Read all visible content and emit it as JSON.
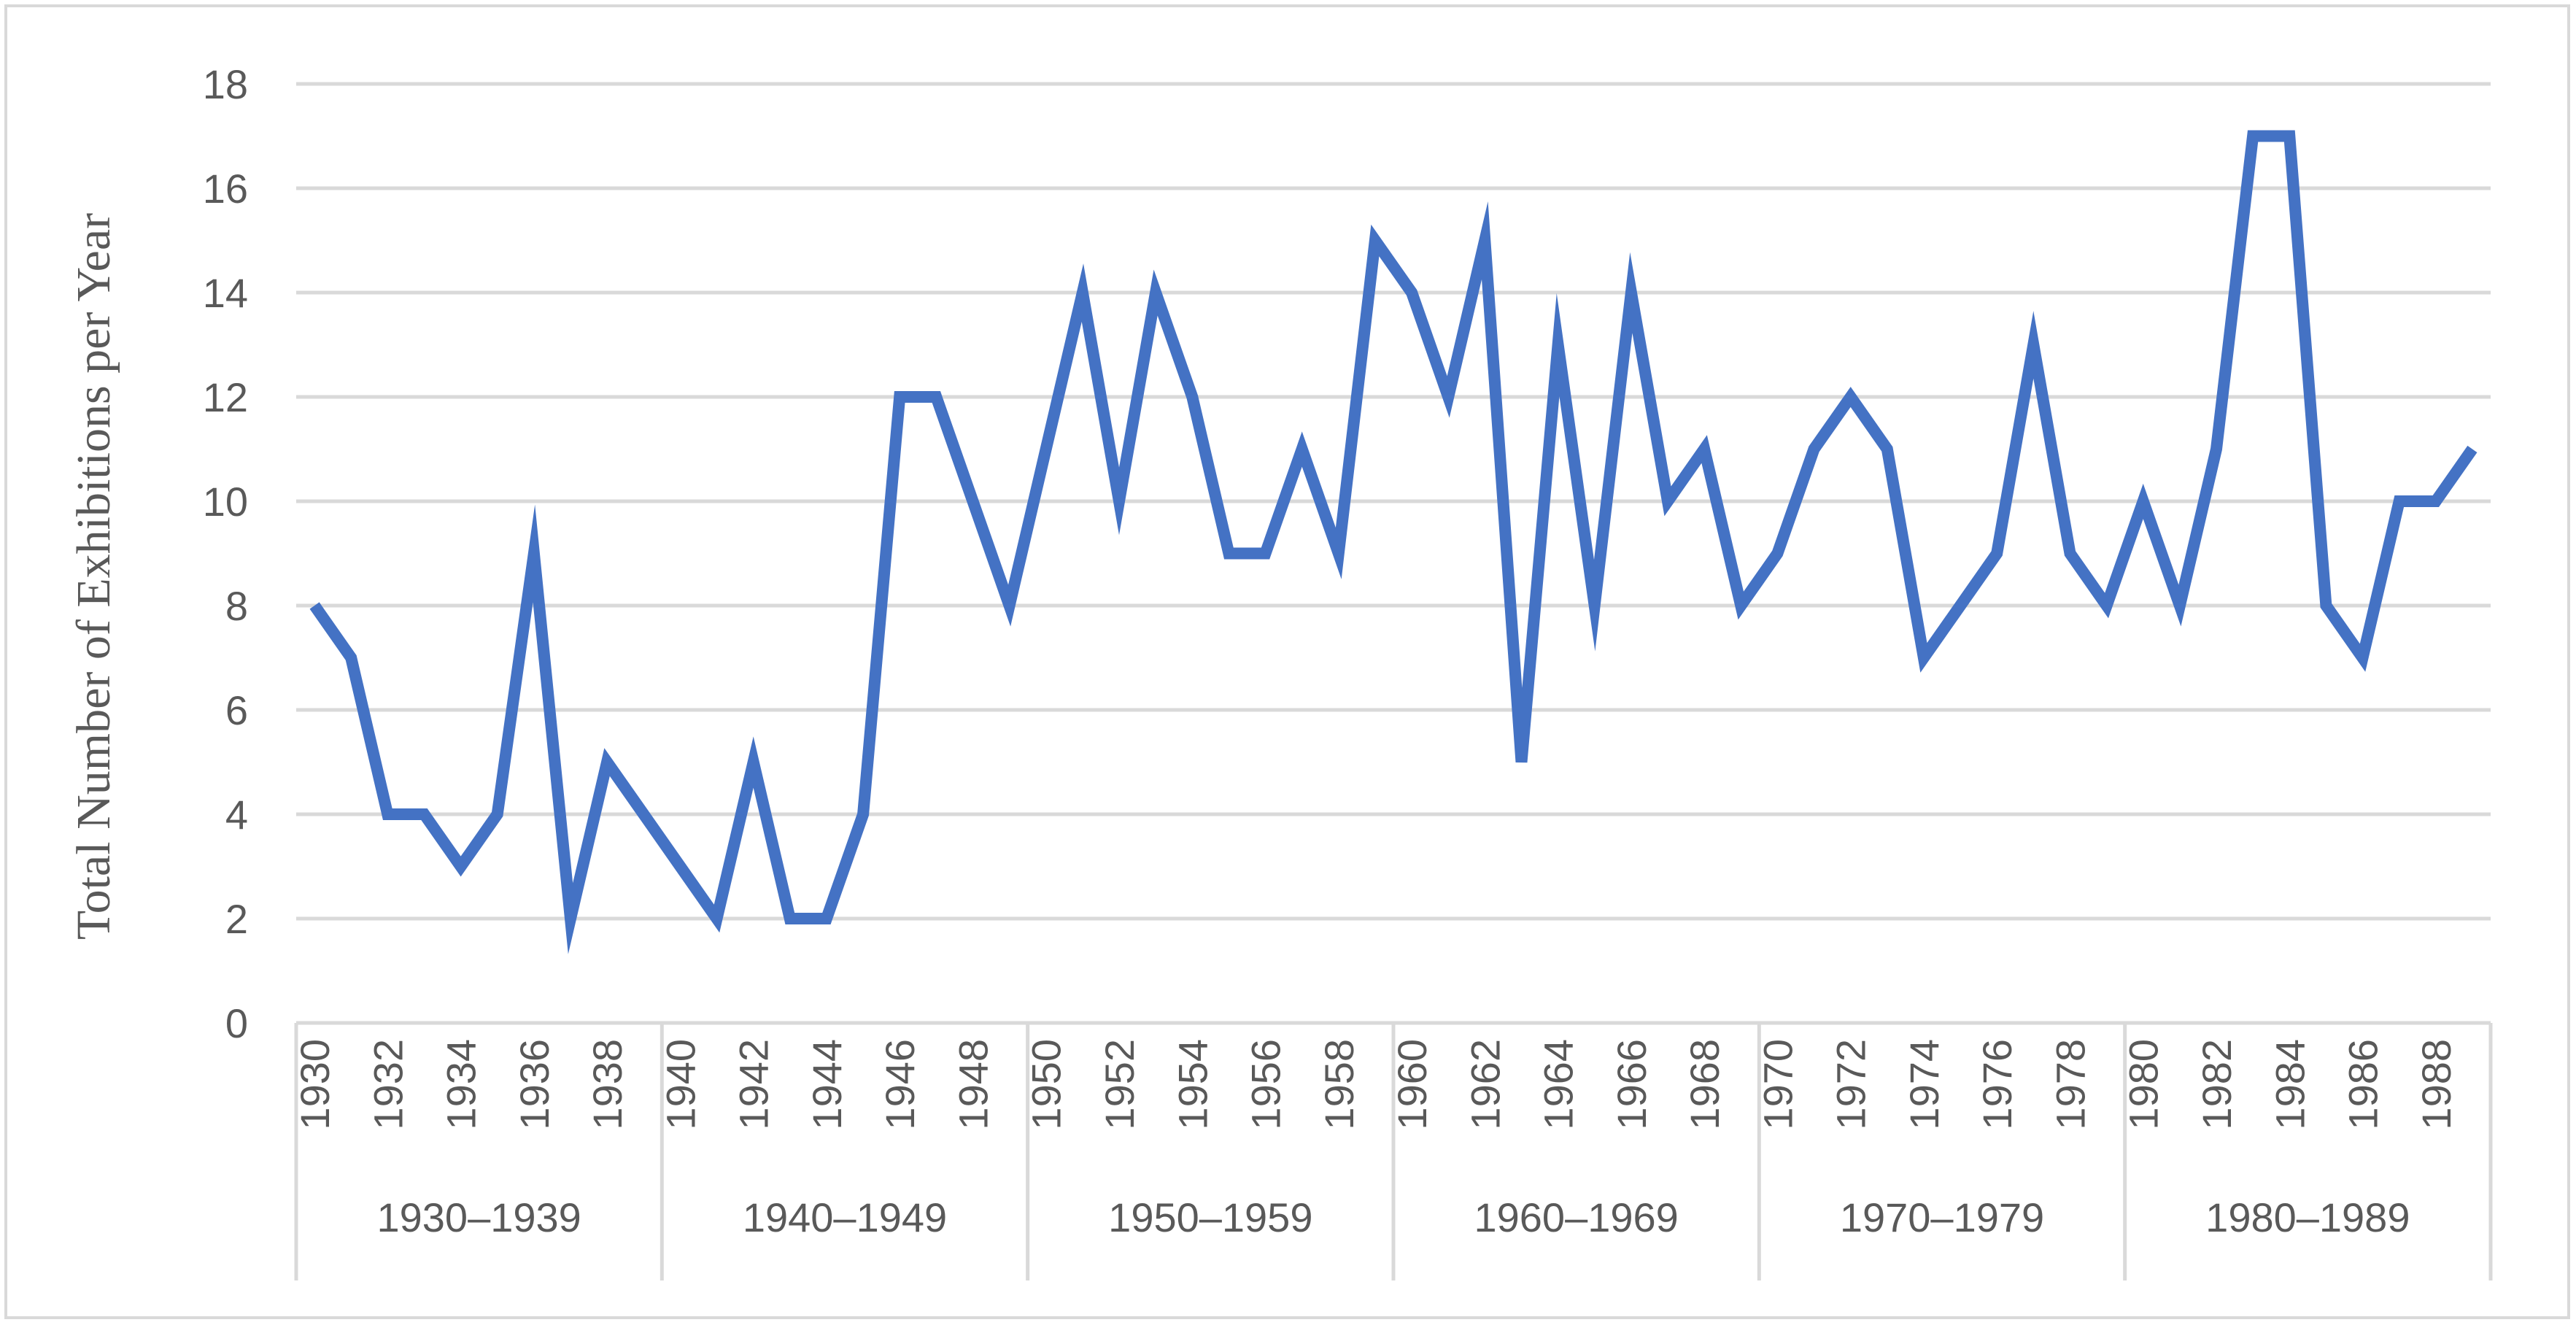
{
  "chart_data": {
    "type": "line",
    "title": "",
    "ylabel": "Total Number of Exhibitions per Year",
    "xlabel": "",
    "ylim": [
      0,
      18
    ],
    "yticks": [
      0,
      2,
      4,
      6,
      8,
      10,
      12,
      14,
      16,
      18
    ],
    "grid": true,
    "legend": "none",
    "x": [
      1930,
      1931,
      1932,
      1933,
      1934,
      1935,
      1936,
      1937,
      1938,
      1939,
      1940,
      1941,
      1942,
      1943,
      1944,
      1945,
      1946,
      1947,
      1948,
      1949,
      1950,
      1951,
      1952,
      1953,
      1954,
      1955,
      1956,
      1957,
      1958,
      1959,
      1960,
      1961,
      1962,
      1963,
      1964,
      1965,
      1966,
      1967,
      1968,
      1969,
      1970,
      1971,
      1972,
      1973,
      1974,
      1975,
      1976,
      1977,
      1978,
      1979,
      1980,
      1981,
      1982,
      1983,
      1984,
      1985,
      1986,
      1987,
      1988,
      1989
    ],
    "x_tick_labels": [
      "1930",
      "1932",
      "1934",
      "1936",
      "1938",
      "1940",
      "1942",
      "1944",
      "1946",
      "1948",
      "1950",
      "1952",
      "1954",
      "1956",
      "1958",
      "1960",
      "1962",
      "1964",
      "1966",
      "1968",
      "1970",
      "1972",
      "1974",
      "1976",
      "1978",
      "1980",
      "1982",
      "1984",
      "1986",
      "1988"
    ],
    "groups": [
      "1930–1939",
      "1940–1949",
      "1950–1959",
      "1960–1969",
      "1970–1979",
      "1980–1989"
    ],
    "series": [
      {
        "values": [
          8,
          7,
          4,
          4,
          3,
          4,
          9,
          2,
          5,
          4,
          3,
          2,
          5,
          2,
          2,
          4,
          12,
          12,
          10,
          8,
          11,
          14,
          10,
          14,
          12,
          9,
          9,
          11,
          9,
          15,
          14,
          12,
          15,
          5,
          13,
          8,
          14,
          10,
          11,
          8,
          9,
          11,
          12,
          11,
          7,
          8,
          9,
          13,
          9,
          8,
          10,
          8,
          11,
          17,
          17,
          8,
          7,
          10,
          10,
          11
        ],
        "color": "#4472C4"
      }
    ],
    "gridline_color": "#d9d9d9",
    "text_color": "#595959"
  }
}
